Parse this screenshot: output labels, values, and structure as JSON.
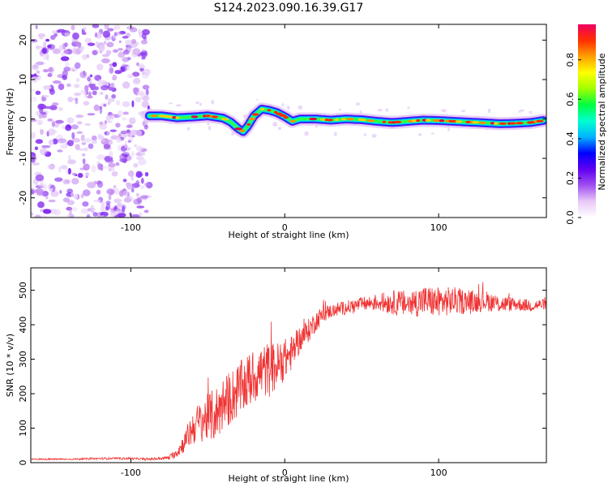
{
  "title": "S124.2023.090.16.39.G17",
  "chart_data": [
    {
      "type": "heatmap",
      "xlabel": "Height of straight line (km)",
      "ylabel": "Frequency (Hz)",
      "xlim": [
        -165,
        170
      ],
      "ylim": [
        -25,
        24
      ],
      "xticks": [
        -100,
        0,
        100
      ],
      "yticks": [
        -20,
        -10,
        0,
        10,
        20
      ],
      "colorbar": {
        "label": "Normalized spectral amplitude",
        "ticks": [
          "0.0",
          "0.2",
          "0.4",
          "0.6",
          "0.8"
        ],
        "range": [
          0,
          0.98
        ],
        "colors": [
          "#ffffff",
          "#e8c8f8",
          "#a050f0",
          "#6000f0",
          "#0000ff",
          "#00b4ff",
          "#00ffd0",
          "#00ff40",
          "#a0ff00",
          "#ffff00",
          "#ffa000",
          "#ff3000",
          "#f00060"
        ]
      },
      "noise_region_x": [
        -165,
        -88
      ],
      "line_trace": {
        "x": [
          -88,
          -80,
          -70,
          -60,
          -50,
          -40,
          -35,
          -30,
          -27,
          -24,
          -20,
          -15,
          -10,
          -5,
          0,
          5,
          10,
          20,
          30,
          40,
          50,
          60,
          70,
          80,
          90,
          100,
          110,
          120,
          130,
          140,
          150,
          160,
          168
        ],
        "y": [
          0.8,
          0.8,
          0.3,
          0.5,
          0.8,
          0.2,
          -0.8,
          -2.5,
          -3.2,
          -1.8,
          0.8,
          2.5,
          2.2,
          1.6,
          0.6,
          -0.6,
          0.0,
          0.0,
          -0.3,
          0.0,
          -0.2,
          -0.6,
          -0.9,
          -0.6,
          -0.3,
          -0.4,
          -0.6,
          -0.8,
          -1.0,
          -1.2,
          -1.1,
          -0.9,
          -0.4
        ]
      }
    },
    {
      "type": "line",
      "xlabel": "Height of straight line (km)",
      "ylabel": "SNR (10 * v/v)",
      "xlim": [
        -165,
        170
      ],
      "ylim": [
        0,
        565
      ],
      "xticks": [
        -100,
        0,
        100
      ],
      "yticks": [
        0,
        100,
        200,
        300,
        400,
        500
      ],
      "color": "#f03232",
      "x": [
        -165,
        -140,
        -120,
        -100,
        -90,
        -80,
        -75,
        -70,
        -65,
        -60,
        -55,
        -50,
        -45,
        -40,
        -35,
        -30,
        -25,
        -20,
        -15,
        -10,
        -5,
        0,
        5,
        10,
        15,
        20,
        25,
        30,
        40,
        50,
        60,
        70,
        80,
        90,
        100,
        110,
        120,
        130,
        140,
        150,
        160,
        170
      ],
      "y": [
        10,
        10,
        12,
        12,
        10,
        12,
        15,
        30,
        60,
        100,
        120,
        130,
        140,
        170,
        190,
        210,
        230,
        250,
        265,
        270,
        280,
        300,
        320,
        360,
        380,
        410,
        430,
        440,
        450,
        460,
        465,
        465,
        460,
        470,
        465,
        470,
        465,
        470,
        460,
        460,
        455,
        460
      ],
      "noise_amplitude": [
        2,
        2,
        3,
        3,
        3,
        4,
        6,
        15,
        30,
        50,
        60,
        70,
        80,
        80,
        80,
        80,
        80,
        80,
        80,
        80,
        70,
        60,
        50,
        40,
        35,
        30,
        25,
        20,
        20,
        20,
        25,
        35,
        40,
        45,
        45,
        40,
        35,
        30,
        25,
        20,
        18,
        15
      ]
    }
  ]
}
